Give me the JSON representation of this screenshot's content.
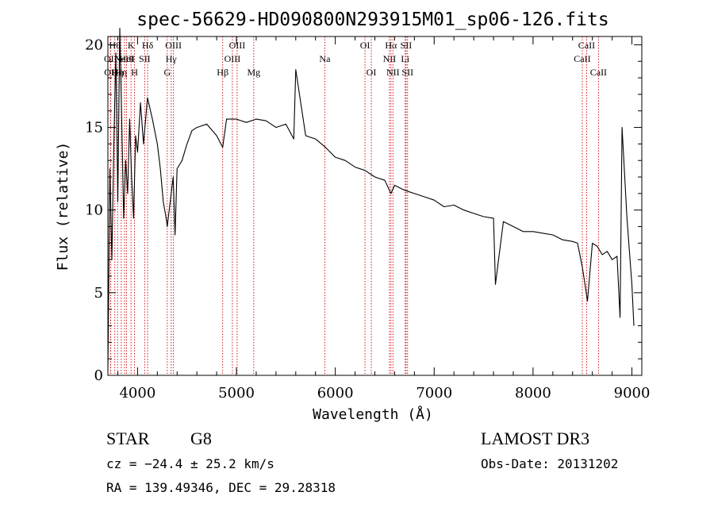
{
  "chart_data": {
    "type": "line",
    "title": "spec-56629-HD090800N293915M01_sp06-126.fits",
    "xlabel": "Wavelength (Å)",
    "ylabel": "Flux (relative)",
    "xlim": [
      3700,
      9100
    ],
    "ylim": [
      0,
      20.5
    ],
    "xticks": [
      4000,
      5000,
      6000,
      7000,
      8000,
      9000
    ],
    "yticks": [
      0,
      5,
      10,
      15,
      20
    ],
    "line_color": "#000000",
    "marker_color": "#cc0000",
    "series": [
      {
        "x": [
          3700,
          3720,
          3740,
          3760,
          3780,
          3800,
          3820,
          3840,
          3860,
          3880,
          3900,
          3920,
          3940,
          3960,
          3980,
          4000,
          4030,
          4060,
          4100,
          4150,
          4200,
          4230,
          4260,
          4290,
          4300,
          4320,
          4340,
          4360,
          4380,
          4400,
          4450,
          4500,
          4550,
          4600,
          4700,
          4800,
          4861,
          4900,
          5000,
          5100,
          5200,
          5300,
          5400,
          5500,
          5580,
          5600,
          5700,
          5800,
          5900,
          6000,
          6100,
          6200,
          6300,
          6400,
          6500,
          6563,
          6600,
          6700,
          6800,
          6900,
          7000,
          7100,
          7200,
          7300,
          7400,
          7500,
          7600,
          7620,
          7700,
          7800,
          7900,
          8000,
          8100,
          8200,
          8300,
          8400,
          8450,
          8500,
          8550,
          8600,
          8650,
          8700,
          8750,
          8800,
          8850,
          8880,
          8900,
          8950,
          9000,
          9020
        ],
        "y": [
          0.3,
          12.5,
          7.0,
          14.0,
          19.5,
          10.5,
          21.0,
          15.5,
          9.5,
          13.0,
          11.0,
          15.5,
          12.0,
          9.5,
          14.5,
          13.5,
          16.5,
          14.0,
          16.8,
          15.5,
          14.0,
          12.5,
          10.5,
          9.5,
          9.0,
          10.0,
          11.0,
          12.0,
          8.5,
          12.5,
          13.0,
          14.0,
          14.8,
          15.0,
          15.2,
          14.5,
          13.8,
          15.5,
          15.5,
          15.3,
          15.5,
          15.4,
          15.0,
          15.2,
          14.3,
          18.5,
          14.5,
          14.3,
          13.8,
          13.2,
          13.0,
          12.6,
          12.4,
          12.0,
          11.8,
          11.0,
          11.5,
          11.2,
          11.0,
          10.8,
          10.6,
          10.2,
          10.3,
          10.0,
          9.8,
          9.6,
          9.5,
          5.5,
          9.3,
          9.0,
          8.7,
          8.7,
          8.6,
          8.5,
          8.2,
          8.1,
          8.0,
          6.5,
          4.5,
          8.0,
          7.8,
          7.3,
          7.5,
          7.0,
          7.2,
          3.5,
          15.0,
          9.5,
          5.5,
          3.0
        ]
      }
    ],
    "markers": [
      {
        "wavelength": 3727,
        "label": "OII",
        "row": 2
      },
      {
        "wavelength": 3729,
        "label": "OII",
        "row": 3
      },
      {
        "wavelength": 3770,
        "label": "Hθ",
        "row": 1
      },
      {
        "wavelength": 3798,
        "label": "Hη",
        "row": 3
      },
      {
        "wavelength": 3835,
        "label": "Hη",
        "row": 3
      },
      {
        "wavelength": 3869,
        "label": "NeIII",
        "row": 2
      },
      {
        "wavelength": 3889,
        "label": "HeI",
        "row": 2
      },
      {
        "wavelength": 3934,
        "label": "K",
        "row": 1
      },
      {
        "wavelength": 3969,
        "label": "H",
        "row": 3
      },
      {
        "wavelength": 4072,
        "label": "SII",
        "row": 2
      },
      {
        "wavelength": 4102,
        "label": "Hδ",
        "row": 1
      },
      {
        "wavelength": 4300,
        "label": "G",
        "row": 3
      },
      {
        "wavelength": 4340,
        "label": "Hγ",
        "row": 2
      },
      {
        "wavelength": 4363,
        "label": "OIII",
        "row": 1
      },
      {
        "wavelength": 4861,
        "label": "Hβ",
        "row": 3
      },
      {
        "wavelength": 4959,
        "label": "OIII",
        "row": 2
      },
      {
        "wavelength": 5007,
        "label": "OIII",
        "row": 1
      },
      {
        "wavelength": 5175,
        "label": "Mg",
        "row": 3
      },
      {
        "wavelength": 5894,
        "label": "Na",
        "row": 2
      },
      {
        "wavelength": 6300,
        "label": "OI",
        "row": 1
      },
      {
        "wavelength": 6364,
        "label": "OI",
        "row": 3
      },
      {
        "wavelength": 6548,
        "label": "NII",
        "row": 2
      },
      {
        "wavelength": 6563,
        "label": "Hα",
        "row": 1
      },
      {
        "wavelength": 6583,
        "label": "NII",
        "row": 3
      },
      {
        "wavelength": 6707,
        "label": "Li",
        "row": 2
      },
      {
        "wavelength": 6716,
        "label": "SII",
        "row": 1
      },
      {
        "wavelength": 6731,
        "label": "SII",
        "row": 3
      },
      {
        "wavelength": 8498,
        "label": "CaII",
        "row": 2
      },
      {
        "wavelength": 8542,
        "label": "CaII",
        "row": 1
      },
      {
        "wavelength": 8662,
        "label": "CaII",
        "row": 3
      }
    ]
  },
  "info": {
    "object_class": "STAR",
    "subclass": "G8",
    "survey": "LAMOST DR3",
    "cz": "cz = −24.4 ± 25.2 km/s",
    "obs_date": "Obs-Date: 20131202",
    "coords": "RA = 139.49346, DEC =  29.28318"
  }
}
